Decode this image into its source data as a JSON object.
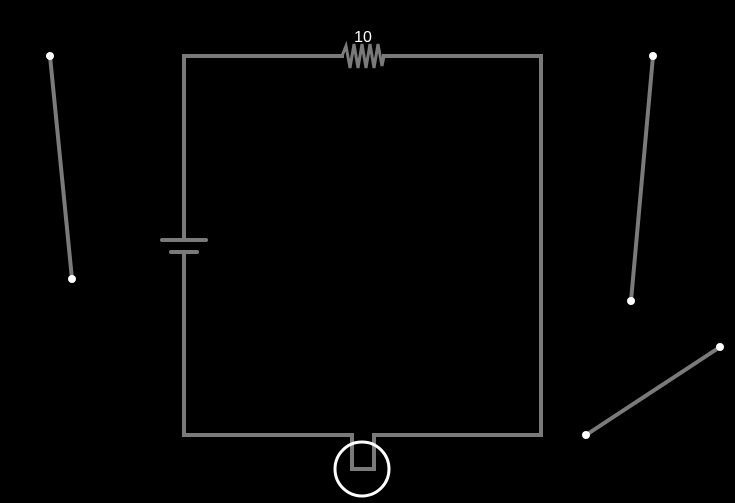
{
  "circuit": {
    "resistor": {
      "value_label": "10"
    },
    "colors": {
      "background": "#000000",
      "wire": "#7a7a7a",
      "endpoint": "#ffffff",
      "label": "#ffffff"
    },
    "components": [
      {
        "type": "battery",
        "icon": "battery-icon"
      },
      {
        "type": "resistor",
        "icon": "resistor-icon"
      },
      {
        "type": "switch",
        "icon": "switch-icon"
      }
    ]
  }
}
